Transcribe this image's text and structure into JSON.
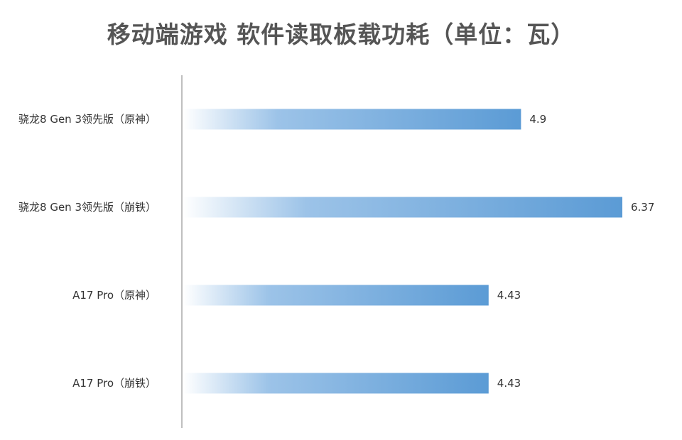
{
  "chart_data": {
    "type": "bar",
    "orientation": "horizontal",
    "title": "移动端游戏 软件读取板载功耗（单位：瓦）",
    "categories": [
      "骁龙8 Gen 3领先版（原神）",
      "骁龙8 Gen 3领先版（崩铁）",
      "A17 Pro（原神）",
      "A17 Pro（崩铁）"
    ],
    "values": [
      4.9,
      6.37,
      4.43,
      4.43
    ],
    "value_labels": [
      "4.9",
      "6.37",
      "4.43",
      "4.43"
    ],
    "xlim": [
      0,
      6.37
    ],
    "grid": false,
    "legend": "none",
    "bar_color": "#5b9bd5"
  }
}
